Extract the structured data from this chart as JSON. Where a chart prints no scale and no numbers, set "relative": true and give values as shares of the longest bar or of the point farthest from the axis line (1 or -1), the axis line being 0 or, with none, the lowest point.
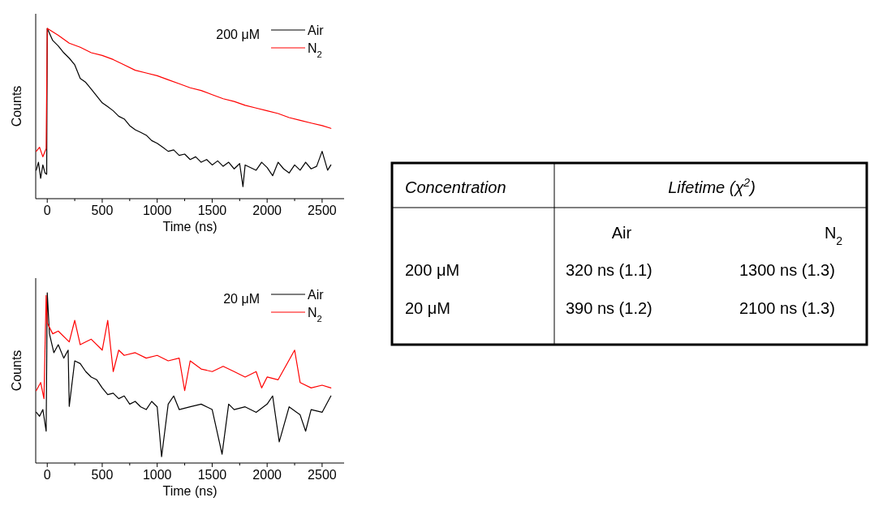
{
  "chart_data": [
    {
      "type": "line",
      "relative": true,
      "xlabel": "Time (ns)",
      "ylabel": "Counts",
      "annotations": [
        "200 μM"
      ],
      "legend": "top right",
      "xlim": [
        -105,
        2700
      ],
      "xticks": [
        0,
        {
          "value": 250,
          "label": null
        },
        500,
        {
          "value": 750,
          "label": null
        },
        1000,
        {
          "value": 1250,
          "label": null
        },
        1500,
        {
          "value": 1750,
          "label": null
        },
        2000,
        {
          "value": 2250,
          "label": null
        },
        2500
      ],
      "series": [
        {
          "name": "Air",
          "color": "#000000",
          "x": [
            -100,
            -80,
            -60,
            -40,
            -20,
            -5,
            0,
            50,
            100,
            150,
            200,
            250,
            300,
            350,
            400,
            450,
            500,
            550,
            600,
            650,
            700,
            750,
            800,
            850,
            900,
            950,
            1000,
            1050,
            1100,
            1150,
            1200,
            1250,
            1300,
            1350,
            1400,
            1450,
            1500,
            1550,
            1600,
            1650,
            1700,
            1750,
            1780,
            1800,
            1900,
            1950,
            2000,
            2050,
            2100,
            2150,
            2200,
            2250,
            2300,
            2350,
            2400,
            2450,
            2500,
            2550,
            2580
          ],
          "values": [
            0.167,
            0.214,
            0.119,
            0.198,
            0.151,
            0.143,
            1.0,
            0.929,
            0.897,
            0.857,
            0.825,
            0.786,
            0.706,
            0.683,
            0.643,
            0.603,
            0.563,
            0.54,
            0.516,
            0.484,
            0.468,
            0.429,
            0.405,
            0.389,
            0.373,
            0.341,
            0.325,
            0.302,
            0.278,
            0.286,
            0.254,
            0.262,
            0.23,
            0.246,
            0.214,
            0.23,
            0.198,
            0.222,
            0.19,
            0.214,
            0.175,
            0.206,
            0.071,
            0.198,
            0.167,
            0.214,
            0.183,
            0.135,
            0.214,
            0.175,
            0.151,
            0.198,
            0.167,
            0.214,
            0.175,
            0.19,
            0.278,
            0.167,
            0.198
          ]
        },
        {
          "name": "N$_{2}$",
          "color": "#ff0000",
          "x": [
            -100,
            -70,
            -40,
            -10,
            0,
            100,
            200,
            300,
            400,
            500,
            600,
            700,
            800,
            900,
            1000,
            1100,
            1200,
            1300,
            1400,
            1500,
            1600,
            1700,
            1800,
            1900,
            2000,
            2100,
            2200,
            2300,
            2400,
            2500,
            2580
          ],
          "values": [
            0.278,
            0.302,
            0.246,
            0.294,
            1.0,
            0.96,
            0.913,
            0.889,
            0.857,
            0.841,
            0.817,
            0.786,
            0.754,
            0.738,
            0.722,
            0.698,
            0.675,
            0.651,
            0.635,
            0.611,
            0.587,
            0.571,
            0.548,
            0.532,
            0.516,
            0.5,
            0.476,
            0.46,
            0.444,
            0.429,
            0.413
          ]
        }
      ]
    },
    {
      "type": "line",
      "relative": true,
      "xlabel": "Time (ns)",
      "ylabel": "Counts",
      "annotations": [
        "20 μM"
      ],
      "legend": "top right",
      "xlim": [
        -105,
        2700
      ],
      "xticks": [
        0,
        {
          "value": 250,
          "label": null
        },
        500,
        {
          "value": 750,
          "label": null
        },
        1000,
        {
          "value": 1250,
          "label": null
        },
        1500,
        {
          "value": 1750,
          "label": null
        },
        2000,
        {
          "value": 2250,
          "label": null
        },
        2500
      ],
      "series": [
        {
          "name": "Air",
          "color": "#000000",
          "x": [
            -100,
            -70,
            -40,
            -10,
            0,
            20,
            60,
            100,
            150,
            190,
            200,
            250,
            300,
            350,
            400,
            450,
            500,
            550,
            600,
            650,
            700,
            750,
            800,
            850,
            900,
            950,
            1000,
            1040,
            1100,
            1150,
            1200,
            1300,
            1400,
            1500,
            1590,
            1650,
            1700,
            1800,
            1900,
            2000,
            2050,
            2110,
            2200,
            2300,
            2350,
            2400,
            2500,
            2580
          ],
          "values": [
            0.298,
            0.275,
            0.314,
            0.187,
            1.0,
            0.759,
            0.648,
            0.695,
            0.616,
            0.663,
            0.333,
            0.6,
            0.584,
            0.537,
            0.505,
            0.489,
            0.441,
            0.402,
            0.41,
            0.378,
            0.394,
            0.346,
            0.362,
            0.33,
            0.314,
            0.362,
            0.33,
            0.037,
            0.346,
            0.394,
            0.314,
            0.33,
            0.346,
            0.314,
            0.052,
            0.346,
            0.314,
            0.33,
            0.298,
            0.346,
            0.394,
            0.124,
            0.33,
            0.283,
            0.187,
            0.314,
            0.298,
            0.394
          ]
        },
        {
          "name": "N$_{2}$",
          "color": "#ff0000",
          "x": [
            -100,
            -60,
            -30,
            -10,
            0,
            50,
            100,
            200,
            250,
            300,
            400,
            500,
            550,
            600,
            650,
            700,
            800,
            900,
            1000,
            1100,
            1200,
            1250,
            1300,
            1400,
            1500,
            1600,
            1700,
            1800,
            1900,
            1950,
            2000,
            2100,
            2250,
            2300,
            2400,
            2500,
            2580
          ],
          "values": [
            0.425,
            0.473,
            0.378,
            0.984,
            0.822,
            0.759,
            0.775,
            0.711,
            0.838,
            0.695,
            0.727,
            0.663,
            0.838,
            0.537,
            0.663,
            0.632,
            0.648,
            0.616,
            0.632,
            0.6,
            0.616,
            0.425,
            0.6,
            0.552,
            0.537,
            0.568,
            0.537,
            0.505,
            0.537,
            0.441,
            0.505,
            0.489,
            0.663,
            0.473,
            0.441,
            0.457,
            0.441
          ]
        }
      ]
    },
    {
      "type": "other",
      "annotations": [
        "Concentration",
        "Lifetime (χ$^{2}$)",
        "Air",
        "N$_{2}$",
        "200 μM",
        "320 ns (1.1)",
        "1300 ns (1.3)",
        "20 μM",
        "390 ns (1.2)",
        "2100 ns (1.3)"
      ]
    }
  ]
}
